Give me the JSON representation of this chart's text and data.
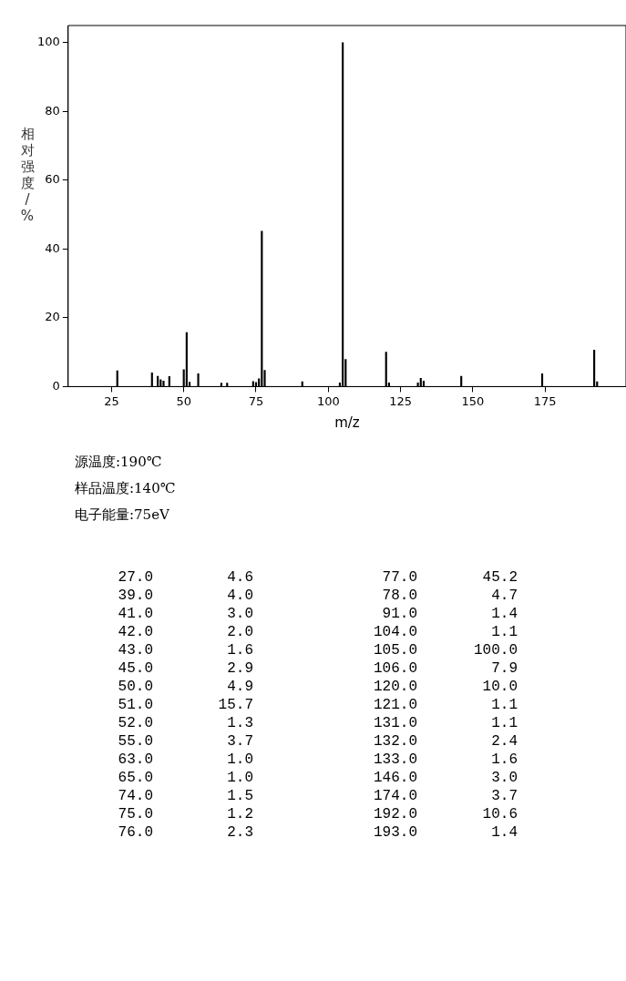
{
  "chart_data": [
    {
      "type": "bar",
      "xlabel": "m/z",
      "ylabel": "相对强度/%",
      "annotations": [
        "源温度:190℃",
        "样品温度:140℃",
        "电子能量:75eV"
      ],
      "x": [
        27,
        39,
        41,
        42,
        43,
        45,
        50,
        51,
        52,
        55,
        63,
        65,
        74,
        75,
        76,
        77,
        78,
        91,
        104,
        105,
        106,
        120,
        121,
        131,
        132,
        133,
        146,
        174,
        192,
        193
      ],
      "values": [
        4.6,
        4.0,
        3.0,
        2.0,
        1.6,
        2.9,
        4.9,
        15.7,
        1.3,
        3.7,
        1.0,
        1.0,
        1.5,
        1.2,
        2.3,
        45.2,
        4.7,
        1.4,
        1.1,
        100.0,
        7.9,
        10.0,
        1.1,
        1.1,
        2.4,
        1.6,
        3.0,
        3.7,
        10.6,
        1.4
      ],
      "color": "#000000",
      "xlim": [
        10,
        203
      ],
      "xticks": [
        25,
        50,
        75,
        100,
        125,
        150,
        175
      ],
      "ylim": [
        0,
        105
      ],
      "yticks": [
        0,
        20,
        40,
        60,
        80,
        100
      ]
    },
    {
      "type": "other",
      "annotations": [
        "27.0",
        "4.6",
        "39.0",
        "4.0",
        "41.0",
        "3.0",
        "42.0",
        "2.0",
        "43.0",
        "1.6",
        "45.0",
        "2.9",
        "50.0",
        "4.9",
        "51.0",
        "15.7",
        "52.0",
        "1.3",
        "55.0",
        "3.7",
        "63.0",
        "1.0",
        "65.0",
        "1.0",
        "74.0",
        "1.5",
        "75.0",
        "1.2",
        "76.0",
        "2.3",
        "77.0",
        "45.2",
        "78.0",
        "4.7",
        "91.0",
        "1.4",
        "104.0",
        "1.1",
        "105.0",
        "100.0",
        "106.0",
        "7.9",
        "120.0",
        "10.0",
        "121.0",
        "1.1",
        "131.0",
        "1.1",
        "132.0",
        "2.4",
        "133.0",
        "1.6",
        "146.0",
        "3.0",
        "174.0",
        "3.7",
        "192.0",
        "10.6",
        "193.0",
        "1.4"
      ]
    }
  ]
}
